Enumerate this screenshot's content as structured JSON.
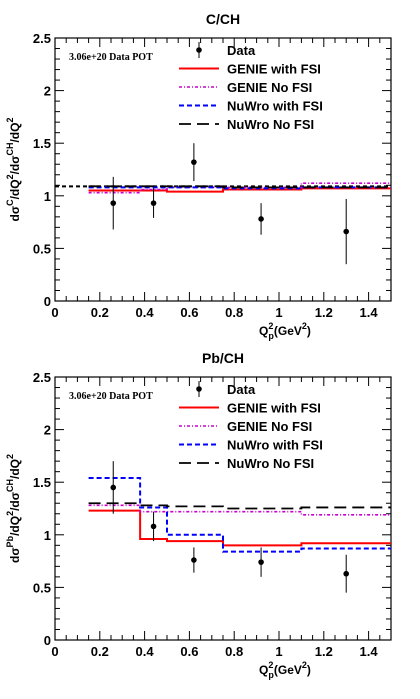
{
  "chart_data": [
    {
      "type": "scatter",
      "title": "C/CH",
      "annotation": "3.06e+20 Data POT",
      "xlabel": "Q",
      "xlabel_sub": "p",
      "xlabel_sup": "2",
      "xlabel_unit": "(GeV",
      "xlabel_unit_sup": "2",
      "xlabel_close": ")",
      "ylabel": "dσ^C/dQ²/dσ^CH/dQ²",
      "ylabel_parts": {
        "lead": "d",
        "sym1": "σ",
        "sup1": "C",
        "mid": "/dQ",
        "sup2": "2",
        "mid2": "/d",
        "sym2": "σ",
        "sup3": "CH",
        "tail": "/dQ",
        "sup4": "2"
      },
      "xlim": [
        0,
        1.5
      ],
      "ylim": [
        0,
        2.5
      ],
      "xticks": [
        "0",
        "0.2",
        "0.4",
        "0.6",
        "0.8",
        "1",
        "1.2",
        "1.4"
      ],
      "xtick_values": [
        0,
        0.2,
        0.4,
        0.6,
        0.8,
        1.0,
        1.2,
        1.4
      ],
      "yticks": [
        "0",
        "0.5",
        "1",
        "1.5",
        "2",
        "2.5"
      ],
      "ytick_values": [
        0,
        0.5,
        1.0,
        1.5,
        2.0,
        2.5
      ],
      "reference_line": 1.09,
      "legend": [
        "Data",
        "GENIE with FSI",
        "GENIE No FSI",
        "NuWro with FSI",
        "NuWro No FSI"
      ],
      "data": {
        "x": [
          0.26,
          0.44,
          0.62,
          0.92,
          1.3
        ],
        "y": [
          0.93,
          0.93,
          1.32,
          0.78,
          0.66
        ],
        "yerr": [
          0.25,
          0.14,
          0.18,
          0.15,
          0.31
        ]
      },
      "bin_edges": [
        0.15,
        0.38,
        0.5,
        0.75,
        1.1,
        1.5
      ],
      "series": [
        {
          "name": "GENIE with FSI",
          "color": "#ff0000",
          "values": [
            1.05,
            1.05,
            1.04,
            1.06,
            1.07
          ]
        },
        {
          "name": "GENIE No FSI",
          "color": "#cc00cc",
          "values": [
            1.03,
            1.06,
            1.08,
            1.08,
            1.12
          ]
        },
        {
          "name": "NuWro with FSI",
          "color": "#0000ff",
          "values": [
            1.08,
            1.08,
            1.08,
            1.07,
            1.08
          ]
        },
        {
          "name": "NuWro No FSI",
          "color": "#000000",
          "values": [
            1.09,
            1.09,
            1.09,
            1.08,
            1.08
          ]
        }
      ]
    },
    {
      "type": "scatter",
      "title": "Pb/CH",
      "annotation": "3.06e+20 Data POT",
      "xlabel": "Q",
      "xlabel_sub": "p",
      "xlabel_sup": "2",
      "xlabel_unit": "(GeV",
      "xlabel_unit_sup": "2",
      "xlabel_close": ")",
      "ylabel": "dσ^Pb/dQ²/dσ^CH/dQ²",
      "ylabel_parts": {
        "lead": "d",
        "sym1": "σ",
        "sup1": "Pb",
        "mid": "/dQ",
        "sup2": "2",
        "mid2": "/d",
        "sym2": "σ",
        "sup3": "CH",
        "tail": "/dQ",
        "sup4": "2"
      },
      "xlim": [
        0,
        1.5
      ],
      "ylim": [
        0,
        2.5
      ],
      "xticks": [
        "0",
        "0.2",
        "0.4",
        "0.6",
        "0.8",
        "1",
        "1.2",
        "1.4"
      ],
      "xtick_values": [
        0,
        0.2,
        0.4,
        0.6,
        0.8,
        1.0,
        1.2,
        1.4
      ],
      "yticks": [
        "0",
        "0.5",
        "1",
        "1.5",
        "2",
        "2.5"
      ],
      "ytick_values": [
        0,
        0.5,
        1.0,
        1.5,
        2.0,
        2.5
      ],
      "reference_line": null,
      "legend": [
        "Data",
        "GENIE with FSI",
        "GENIE No FSI",
        "NuWro with FSI",
        "NuWro No FSI"
      ],
      "data": {
        "x": [
          0.26,
          0.44,
          0.62,
          0.92,
          1.3
        ],
        "y": [
          1.45,
          1.08,
          0.76,
          0.74,
          0.63
        ],
        "yerr": [
          0.25,
          0.14,
          0.12,
          0.14,
          0.18
        ]
      },
      "bin_edges": [
        0.15,
        0.38,
        0.5,
        0.75,
        1.1,
        1.5
      ],
      "series": [
        {
          "name": "GENIE with FSI",
          "color": "#ff0000",
          "values": [
            1.23,
            0.96,
            0.94,
            0.9,
            0.92
          ]
        },
        {
          "name": "GENIE No FSI",
          "color": "#cc00cc",
          "values": [
            1.28,
            1.22,
            1.22,
            1.22,
            1.19
          ]
        },
        {
          "name": "NuWro with FSI",
          "color": "#0000ff",
          "values": [
            1.54,
            1.26,
            1.0,
            0.84,
            0.87
          ]
        },
        {
          "name": "NuWro No FSI",
          "color": "#000000",
          "values": [
            1.3,
            1.28,
            1.27,
            1.25,
            1.26
          ]
        }
      ]
    }
  ]
}
